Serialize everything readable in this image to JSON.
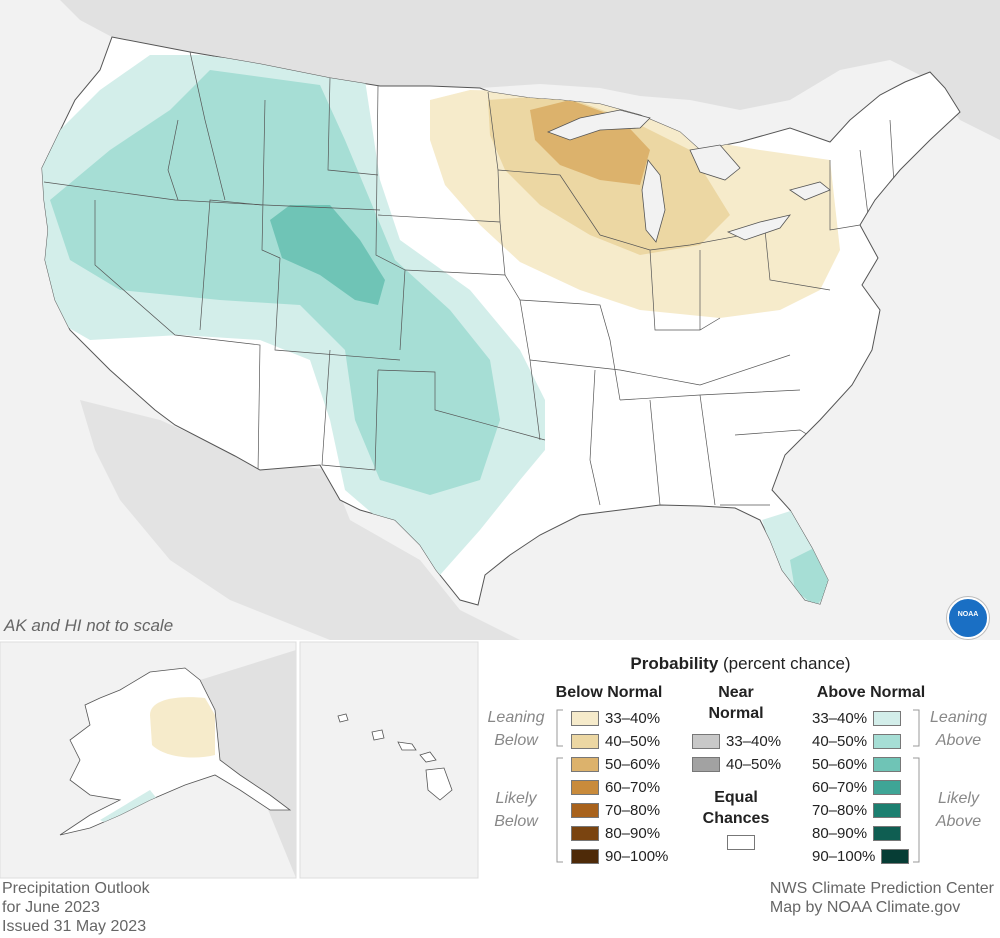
{
  "map_note": "AK and HI not to scale",
  "footer_left": {
    "line1": "Precipitation Outlook",
    "line2": "for June 2023",
    "line3": "Issued 31 May 2023"
  },
  "footer_right": {
    "line1": "NWS Climate Prediction Center",
    "line2": "Map by NOAA Climate.gov"
  },
  "logo_text": "NOAA",
  "legend": {
    "title_bold": "Probability",
    "title_rest": " (percent chance)",
    "below_header": "Below Normal",
    "near_header_1": "Near",
    "near_header_2": "Normal",
    "above_header": "Above Normal",
    "equal_header_1": "Equal",
    "equal_header_2": "Chances",
    "leaning_below_1": "Leaning",
    "leaning_below_2": "Below",
    "likely_below_1": "Likely",
    "likely_below_2": "Below",
    "leaning_above_1": "Leaning",
    "leaning_above_2": "Above",
    "likely_above_1": "Likely",
    "likely_above_2": "Above",
    "below": [
      {
        "label": "33–40%",
        "color": "#f6ebcb"
      },
      {
        "label": "40–50%",
        "color": "#ecd7a3"
      },
      {
        "label": "50–60%",
        "color": "#dcb26c"
      },
      {
        "label": "60–70%",
        "color": "#c98b3b"
      },
      {
        "label": "70–80%",
        "color": "#a8621c"
      },
      {
        "label": "80–90%",
        "color": "#7a4410"
      },
      {
        "label": "90–100%",
        "color": "#4e2a08"
      }
    ],
    "near": [
      {
        "label": "33–40%",
        "color": "#c8c8c8"
      },
      {
        "label": "40–50%",
        "color": "#a2a2a2"
      }
    ],
    "above": [
      {
        "label": "33–40%",
        "color": "#d3eeea"
      },
      {
        "label": "40–50%",
        "color": "#a6ded5"
      },
      {
        "label": "50–60%",
        "color": "#6fc4b6"
      },
      {
        "label": "60–70%",
        "color": "#3fa596"
      },
      {
        "label": "70–80%",
        "color": "#1c7f70"
      },
      {
        "label": "80–90%",
        "color": "#0f5e52"
      },
      {
        "label": "90–100%",
        "color": "#063d35"
      }
    ]
  }
}
